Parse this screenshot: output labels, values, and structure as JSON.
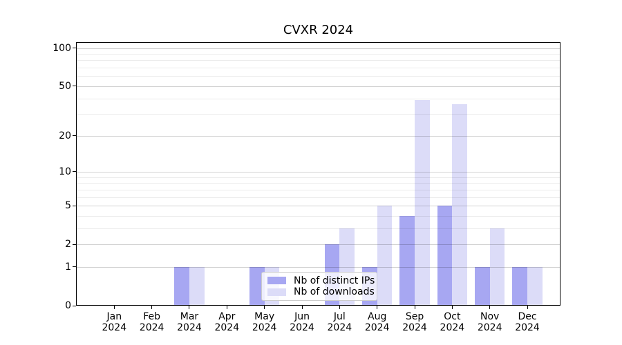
{
  "colors": {
    "distinct_ips": "#a7a7f2",
    "downloads": "#dcdcf8",
    "grid_major": "#d2d2d2",
    "grid_minor": "#ebebeb",
    "axis": "#000000"
  },
  "chart_data": {
    "type": "bar",
    "title": "CVXR 2024",
    "categories": [
      "Jan",
      "Feb",
      "Mar",
      "Apr",
      "May",
      "Jun",
      "Jul",
      "Aug",
      "Sep",
      "Oct",
      "Nov",
      "Dec"
    ],
    "x_year_label": "2024",
    "series": [
      {
        "name": "Nb of distinct IPs",
        "values": [
          0,
          0,
          1,
          0,
          1,
          0,
          2,
          1,
          4,
          5,
          1,
          1
        ]
      },
      {
        "name": "Nb of downloads",
        "values": [
          0,
          0,
          1,
          0,
          1,
          0,
          3,
          5,
          39,
          36,
          3,
          1
        ]
      }
    ],
    "yscale": "log1p",
    "yticks": [
      0,
      1,
      2,
      5,
      10,
      20,
      50,
      100
    ],
    "yticks_minor": [
      3,
      4,
      6,
      7,
      8,
      9,
      30,
      40,
      60,
      70,
      80,
      90
    ],
    "ylim": [
      0,
      112
    ],
    "grid": true,
    "legend_position": "lower-center"
  }
}
